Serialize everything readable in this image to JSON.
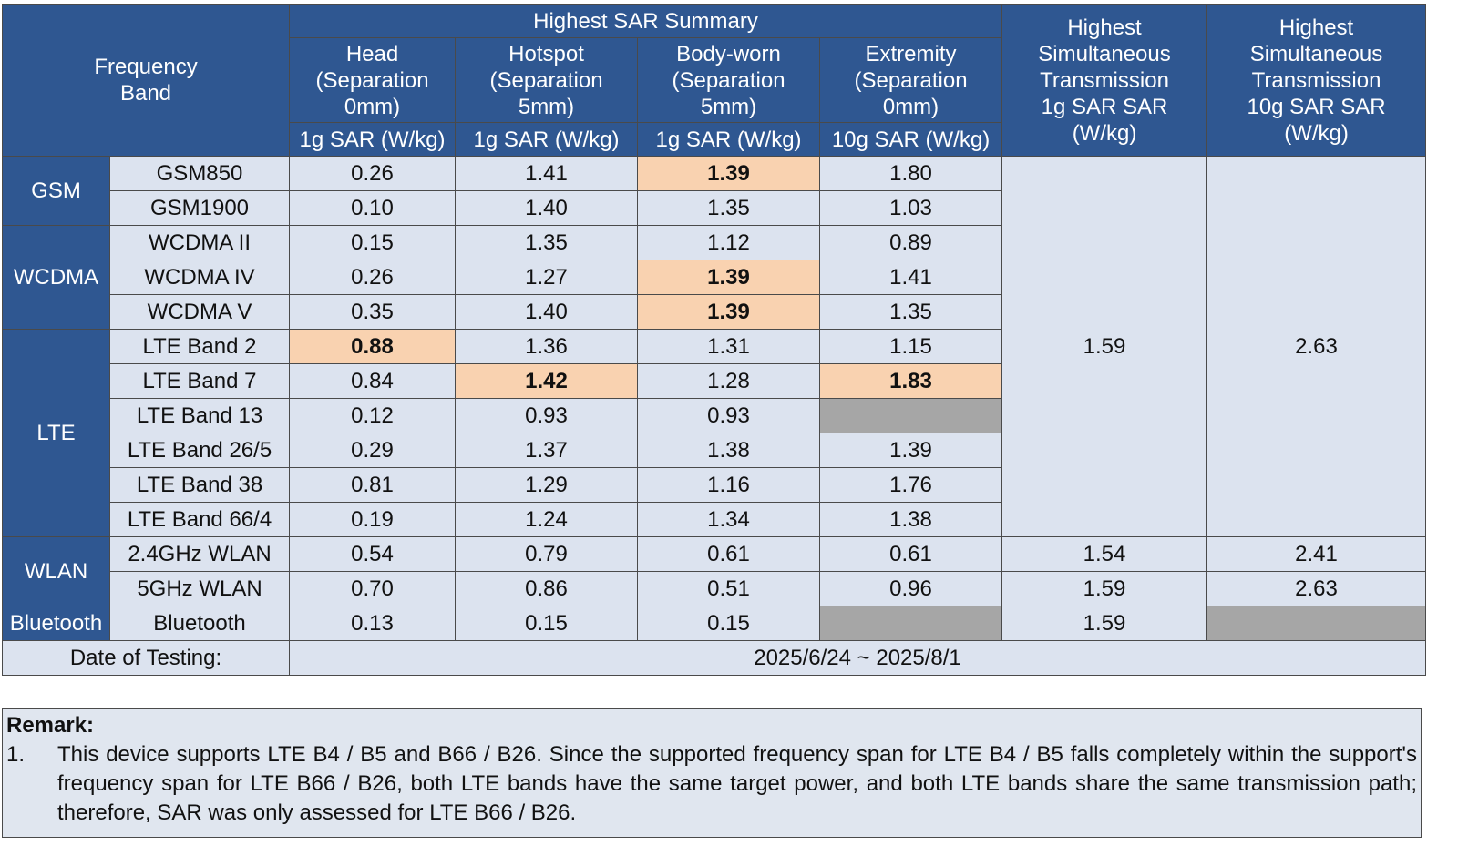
{
  "table": {
    "header": {
      "frequency_band": [
        "Frequency",
        "Band"
      ],
      "summary": "Highest SAR Summary",
      "columns": [
        {
          "lines": [
            "Head",
            "(Separation",
            "0mm)"
          ],
          "unit": "1g SAR (W/kg)"
        },
        {
          "lines": [
            "Hotspot",
            "(Separation",
            "5mm)"
          ],
          "unit": "1g SAR (W/kg)"
        },
        {
          "lines": [
            "Body-worn",
            "(Separation",
            "5mm)"
          ],
          "unit": "1g SAR (W/kg)"
        },
        {
          "lines": [
            "Extremity",
            "(Separation",
            "0mm)"
          ],
          "unit": "10g SAR (W/kg)"
        }
      ],
      "sim_1g": [
        "Highest",
        "Simultaneous",
        "Transmission",
        "1g SAR SAR",
        "(W/kg)"
      ],
      "sim_10g": [
        "Highest",
        "Simultaneous",
        "Transmission",
        "10g SAR SAR",
        "(W/kg)"
      ]
    },
    "blocks": [
      {
        "sim": [
          "1.59",
          "2.63"
        ],
        "groups": [
          {
            "name": "GSM",
            "rows": [
              {
                "band": "GSM850",
                "values": [
                  "0.26",
                  "1.41",
                  "1.39",
                  "1.80"
                ],
                "highlight": [
                  2
                ]
              },
              {
                "band": "GSM1900",
                "values": [
                  "0.10",
                  "1.40",
                  "1.35",
                  "1.03"
                ],
                "highlight": []
              }
            ]
          },
          {
            "name": "WCDMA",
            "rows": [
              {
                "band": "WCDMA II",
                "values": [
                  "0.15",
                  "1.35",
                  "1.12",
                  "0.89"
                ],
                "highlight": []
              },
              {
                "band": "WCDMA IV",
                "values": [
                  "0.26",
                  "1.27",
                  "1.39",
                  "1.41"
                ],
                "highlight": [
                  2
                ]
              },
              {
                "band": "WCDMA V",
                "values": [
                  "0.35",
                  "1.40",
                  "1.39",
                  "1.35"
                ],
                "highlight": [
                  2
                ]
              }
            ]
          },
          {
            "name": "LTE",
            "rows": [
              {
                "band": "LTE Band 2",
                "values": [
                  "0.88",
                  "1.36",
                  "1.31",
                  "1.15"
                ],
                "highlight": [
                  0
                ]
              },
              {
                "band": "LTE Band 7",
                "values": [
                  "0.84",
                  "1.42",
                  "1.28",
                  "1.83"
                ],
                "highlight": [
                  1,
                  3
                ]
              },
              {
                "band": "LTE Band 13",
                "values": [
                  "0.12",
                  "0.93",
                  "0.93",
                  null
                ],
                "highlight": []
              },
              {
                "band": "LTE Band 26/5",
                "values": [
                  "0.29",
                  "1.37",
                  "1.38",
                  "1.39"
                ],
                "highlight": []
              },
              {
                "band": "LTE Band 38",
                "values": [
                  "0.81",
                  "1.29",
                  "1.16",
                  "1.76"
                ],
                "highlight": []
              },
              {
                "band": "LTE Band 66/4",
                "values": [
                  "0.19",
                  "1.24",
                  "1.34",
                  "1.38"
                ],
                "highlight": []
              }
            ]
          }
        ]
      },
      {
        "groups": [
          {
            "name": "WLAN",
            "rows": [
              {
                "band": "2.4GHz WLAN",
                "values": [
                  "0.54",
                  "0.79",
                  "0.61",
                  "0.61"
                ],
                "highlight": [],
                "sim": [
                  "1.54",
                  "2.41"
                ]
              },
              {
                "band": "5GHz WLAN",
                "values": [
                  "0.70",
                  "0.86",
                  "0.51",
                  "0.96"
                ],
                "highlight": [],
                "sim": [
                  "1.59",
                  "2.63"
                ]
              }
            ]
          },
          {
            "name": "Bluetooth",
            "rows": [
              {
                "band": "Bluetooth",
                "values": [
                  "0.13",
                  "0.15",
                  "0.15",
                  null
                ],
                "highlight": [],
                "sim": [
                  "1.59",
                  null
                ]
              }
            ]
          }
        ]
      }
    ],
    "date_label": "Date of Testing:",
    "date": "2025/6/24 ~ 2025/8/1"
  },
  "remark": {
    "title": "Remark:",
    "items": [
      {
        "number": "1.",
        "text": "This device supports LTE B4 / B5 and B66 / B26. Since the supported frequency span for LTE B4 / B5 falls completely within the support's frequency span for LTE B66 / B26, both LTE bands have the same target power, and both LTE bands share the same transmission path; therefore, SAR was only assessed for LTE B66 / B26."
      }
    ]
  }
}
